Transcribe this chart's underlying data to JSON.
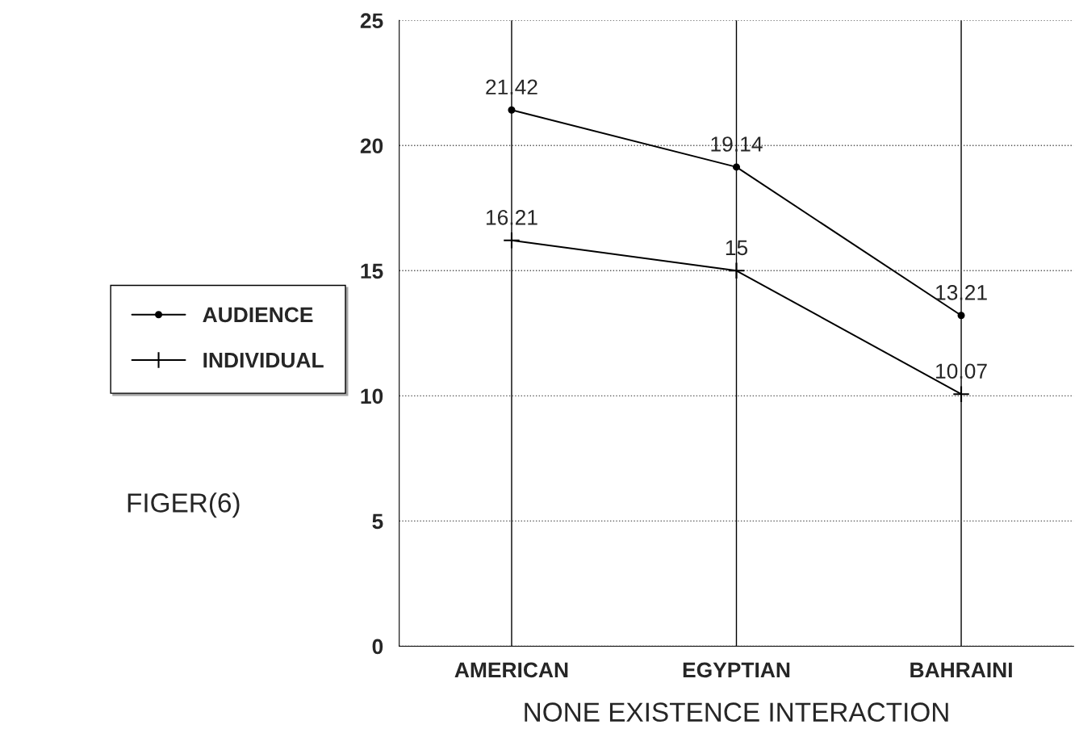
{
  "chart_data": {
    "type": "line",
    "xlabel": "NONE EXISTENCE INTERACTION",
    "categories": [
      "AMERICAN",
      "EGYPTIAN",
      "BAHRAINI"
    ],
    "series": [
      {
        "name": "AUDIENCE",
        "color": "#000000",
        "marker": "circle",
        "values": [
          21.42,
          19.14,
          13.21
        ]
      },
      {
        "name": "INDIVIDUAL",
        "color": "#000000",
        "marker": "cross",
        "values": [
          16.21,
          15,
          10.07
        ]
      }
    ],
    "ylim": [
      0,
      25
    ],
    "yticks": [
      0,
      5,
      10,
      15,
      20,
      25
    ],
    "grid": true,
    "legend": "left",
    "data_labels": true,
    "annotations": [
      "FIGER(6)"
    ]
  }
}
